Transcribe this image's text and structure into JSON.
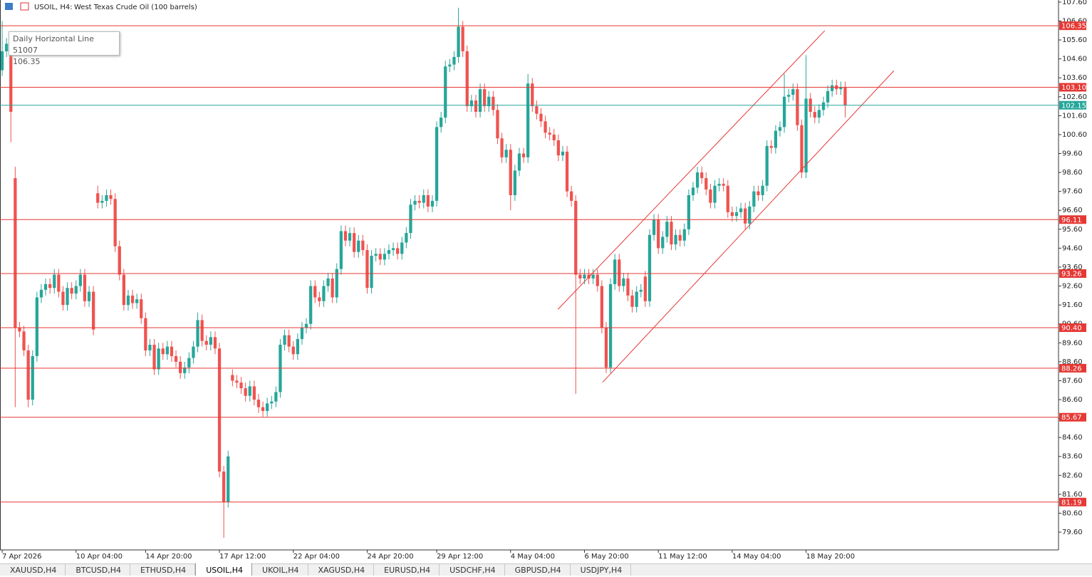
{
  "header": {
    "symbol": "USOIL, H4:",
    "description": "West Texas Crude Oil (100 barrels)"
  },
  "tooltip": {
    "title": "Daily Horizontal Line 51007",
    "value": 106.35
  },
  "tabs": [
    "XAUUSD,H4",
    "BTCUSD,H4",
    "ETHUSD,H4",
    "USOIL,H4",
    "UKOIL,H4",
    "XAGUSD,H4",
    "EURUSD,H4",
    "USDCHF,H4",
    "GBPUSD,H4",
    "USDJPY,H4"
  ],
  "active_tab": 3,
  "chart_data": {
    "type": "candlestick",
    "up_color": "#26a69a",
    "down_color": "#ef5350",
    "xlim": [
      -0.5,
      243.1
    ],
    "ylim": [
      78.66,
      107.71
    ],
    "xticks": [
      {
        "value": 0,
        "label": "7 Apr 2026"
      },
      {
        "value": 17,
        "label": "10 Apr 04:00"
      },
      {
        "value": 33,
        "label": "14 Apr 20:00"
      },
      {
        "value": 50,
        "label": "17 Apr 12:00"
      },
      {
        "value": 67,
        "label": "22 Apr 04:00"
      },
      {
        "value": 84,
        "label": "24 Apr 20:00"
      },
      {
        "value": 100,
        "label": "29 Apr 12:00"
      },
      {
        "value": 117,
        "label": "4 May 04:00"
      },
      {
        "value": 134,
        "label": "6 May 20:00"
      },
      {
        "value": 151,
        "label": "11 May 12:00"
      },
      {
        "value": 168,
        "label": "14 May 04:00"
      },
      {
        "value": 185,
        "label": "18 May 20:00"
      }
    ],
    "yticks": [
      {
        "value": 107.6,
        "label": "107.60"
      },
      {
        "value": 106.6,
        "label": "106.60"
      },
      {
        "value": 105.6,
        "label": "105.60"
      },
      {
        "value": 104.6,
        "label": "104.60"
      },
      {
        "value": 103.6,
        "label": "103.60"
      },
      {
        "value": 102.6,
        "label": "102.60"
      },
      {
        "value": 101.6,
        "label": "101.60"
      },
      {
        "value": 100.6,
        "label": "100.60"
      },
      {
        "value": 99.6,
        "label": "99.60"
      },
      {
        "value": 98.6,
        "label": "98.60"
      },
      {
        "value": 97.6,
        "label": "97.60"
      },
      {
        "value": 96.6,
        "label": "96.60"
      },
      {
        "value": 95.6,
        "label": "95.60"
      },
      {
        "value": 94.6,
        "label": "94.60"
      },
      {
        "value": 93.6,
        "label": "93.60"
      },
      {
        "value": 92.6,
        "label": "92.60"
      },
      {
        "value": 91.6,
        "label": "91.60"
      },
      {
        "value": 90.6,
        "label": "90.60"
      },
      {
        "value": 89.6,
        "label": "89.60"
      },
      {
        "value": 88.6,
        "label": "88.60"
      },
      {
        "value": 87.6,
        "label": "87.60"
      },
      {
        "value": 86.6,
        "label": "86.60"
      },
      {
        "value": 85.6,
        "label": "85.60"
      },
      {
        "value": 84.6,
        "label": "84.60"
      },
      {
        "value": 83.6,
        "label": "83.60"
      },
      {
        "value": 82.6,
        "label": "82.60"
      },
      {
        "value": 81.6,
        "label": "81.60"
      },
      {
        "value": 80.6,
        "label": "80.60"
      },
      {
        "value": 79.6,
        "label": "79.60"
      }
    ],
    "hlines": [
      {
        "value": 106.35,
        "color": "#e53935"
      },
      {
        "value": 103.1,
        "label": "103.10",
        "color": "#e53935"
      },
      {
        "value": 102.15,
        "color": "#26a69a"
      },
      {
        "value": 96.11,
        "color": "#e53935"
      },
      {
        "value": 93.26,
        "color": "#e53935"
      },
      {
        "value": 90.4,
        "label": "90.40",
        "color": "#e53935"
      },
      {
        "value": 88.26,
        "color": "#e53935"
      },
      {
        "value": 85.67,
        "color": "#e53935"
      },
      {
        "value": 81.19,
        "color": "#e53935"
      }
    ],
    "trendlines": [
      {
        "x": [
          127.9,
          189.3
        ],
        "y": [
          91.37,
          106.09
        ],
        "color": "#e53935"
      },
      {
        "x": [
          138.2,
          205.2
        ],
        "y": [
          87.52,
          103.97
        ],
        "color": "#e53935"
      }
    ],
    "open": [
      104.0,
      105.0,
      105.4,
      98.3,
      90.4,
      90.2,
      89.2,
      86.6,
      88.9,
      92.0,
      92.4,
      92.7,
      92.5,
      93.2,
      92.3,
      91.6,
      92.5,
      92.2,
      92.6,
      93.2,
      91.8,
      92.3,
      97.5,
      97.0,
      97.1,
      97.4,
      97.2,
      94.7,
      93.2,
      91.6,
      92.1,
      91.7,
      91.9,
      90.9,
      89.2,
      89.5,
      88.2,
      89.3,
      89.0,
      89.4,
      88.9,
      88.6,
      88.0,
      88.3,
      88.8,
      89.4,
      90.8,
      89.7,
      89.5,
      89.9,
      89.3,
      82.8,
      81.2,
      87.9,
      87.6,
      87.5,
      87.2,
      86.8,
      87.3,
      86.6,
      86.2,
      86.0,
      86.4,
      86.5,
      87.0,
      89.5,
      90.0,
      89.4,
      89.0,
      89.8,
      90.4,
      90.6,
      92.6,
      92.0,
      91.8,
      92.6,
      93.0,
      92.0,
      93.5,
      95.5,
      95.0,
      95.4,
      94.4,
      95.0,
      94.5,
      92.5,
      94.2,
      94.3,
      94.0,
      94.3,
      94.5,
      94.6,
      94.3,
      94.9,
      95.4,
      96.9,
      97.1,
      97.0,
      97.4,
      96.8,
      97.1,
      101.0,
      101.5,
      104.2,
      104.3,
      104.7,
      106.3,
      105.0,
      102.1,
      102.4,
      101.8,
      103.0,
      102.1,
      102.6,
      101.9,
      100.4,
      99.4,
      99.8,
      97.4,
      98.7,
      99.6,
      99.4,
      103.3,
      102.1,
      101.7,
      101.3,
      100.7,
      100.6,
      100.3,
      99.5,
      99.7,
      97.6,
      97.1,
      93.2,
      93.0,
      93.2,
      93.0,
      93.2,
      92.6,
      90.4,
      88.3,
      92.7,
      94.0,
      92.6,
      93.0,
      92.1,
      91.5,
      92.3,
      93.1,
      91.8,
      95.3,
      96.1,
      94.6,
      95.2,
      96.0,
      94.8,
      95.3,
      95.0,
      95.6,
      97.4,
      97.8,
      98.6,
      98.3,
      97.7,
      97.0,
      97.9,
      98.0,
      97.9,
      96.5,
      96.3,
      96.5,
      96.7,
      95.9,
      96.8,
      97.6,
      97.4,
      97.9,
      100.0,
      99.9,
      100.8,
      101.0,
      102.6,
      102.7,
      103.0,
      101.1,
      98.6,
      102.5,
      101.8,
      101.5,
      101.9,
      102.3,
      102.9,
      103.2,
      103.0,
      103.1
    ],
    "high": [
      106.6,
      105.7,
      105.7,
      98.9,
      90.7,
      90.5,
      89.5,
      89.2,
      92.3,
      92.7,
      93.0,
      93.0,
      93.5,
      93.5,
      92.6,
      92.8,
      92.8,
      92.9,
      93.5,
      93.5,
      92.6,
      92.6,
      97.9,
      97.4,
      97.7,
      97.7,
      97.5,
      95.0,
      93.5,
      92.4,
      92.4,
      92.2,
      92.2,
      91.2,
      89.8,
      89.8,
      89.6,
      89.6,
      89.7,
      89.7,
      89.2,
      88.9,
      88.6,
      89.1,
      89.7,
      91.2,
      91.1,
      90.0,
      90.2,
      90.2,
      89.6,
      83.1,
      83.9,
      88.2,
      87.9,
      87.8,
      87.5,
      87.6,
      87.6,
      86.9,
      86.5,
      86.7,
      86.8,
      87.3,
      89.8,
      90.3,
      90.3,
      89.7,
      90.1,
      90.7,
      90.9,
      92.9,
      92.9,
      92.3,
      92.9,
      93.3,
      93.3,
      93.8,
      95.8,
      95.8,
      95.7,
      95.7,
      95.3,
      95.3,
      94.8,
      94.5,
      94.6,
      94.6,
      94.6,
      94.8,
      94.9,
      94.9,
      95.2,
      95.7,
      97.2,
      97.4,
      97.4,
      97.7,
      97.7,
      97.4,
      101.3,
      101.8,
      104.5,
      104.6,
      105.0,
      107.3,
      106.6,
      105.3,
      102.7,
      102.7,
      103.3,
      103.3,
      102.9,
      102.9,
      102.2,
      100.7,
      100.1,
      100.1,
      99.0,
      99.9,
      99.9,
      103.8,
      103.6,
      102.4,
      102.0,
      101.6,
      101.0,
      100.9,
      100.6,
      100.0,
      100.0,
      97.9,
      97.4,
      93.5,
      93.5,
      93.5,
      93.5,
      93.5,
      92.9,
      90.7,
      93.0,
      94.3,
      94.3,
      93.3,
      93.3,
      92.4,
      92.6,
      92.7,
      93.4,
      95.6,
      96.4,
      96.4,
      95.5,
      96.3,
      96.3,
      95.6,
      95.6,
      95.9,
      97.7,
      98.1,
      98.9,
      98.9,
      98.6,
      98.0,
      98.2,
      98.3,
      98.3,
      98.2,
      96.8,
      96.8,
      97.0,
      97.0,
      97.1,
      97.9,
      97.9,
      98.2,
      100.3,
      100.3,
      101.1,
      101.3,
      103.8,
      103.0,
      103.3,
      103.3,
      101.4,
      104.8,
      102.8,
      102.1,
      102.2,
      102.6,
      103.2,
      103.5,
      103.5,
      103.4,
      103.4
    ],
    "low": [
      103.7,
      104.7,
      100.2,
      86.2,
      89.9,
      88.9,
      86.2,
      86.3,
      88.6,
      91.7,
      92.1,
      92.2,
      92.2,
      92.0,
      91.3,
      91.3,
      91.9,
      91.9,
      92.3,
      91.5,
      91.5,
      90.0,
      96.7,
      96.7,
      96.8,
      96.9,
      94.4,
      92.9,
      91.3,
      91.3,
      91.4,
      91.4,
      90.6,
      88.9,
      88.9,
      87.9,
      87.9,
      88.7,
      88.7,
      88.6,
      88.3,
      87.7,
      87.7,
      88.0,
      88.5,
      89.1,
      89.4,
      89.2,
      89.2,
      89.0,
      82.5,
      79.3,
      80.9,
      87.3,
      87.2,
      86.9,
      86.5,
      86.5,
      86.3,
      85.9,
      85.7,
      85.7,
      86.1,
      86.2,
      86.7,
      89.2,
      89.1,
      88.7,
      88.7,
      89.5,
      90.1,
      90.3,
      91.7,
      91.5,
      91.5,
      92.3,
      91.7,
      91.7,
      93.2,
      94.7,
      94.7,
      94.1,
      94.1,
      94.2,
      92.2,
      92.2,
      93.9,
      93.7,
      93.7,
      94.0,
      94.2,
      94.0,
      94.0,
      94.6,
      95.1,
      96.6,
      96.7,
      96.7,
      96.5,
      96.5,
      96.8,
      100.7,
      101.2,
      103.9,
      104.0,
      104.4,
      104.7,
      101.8,
      101.8,
      101.5,
      101.5,
      101.8,
      101.8,
      101.6,
      100.1,
      99.1,
      99.1,
      96.6,
      97.1,
      98.4,
      99.1,
      99.1,
      101.8,
      101.4,
      101.0,
      100.4,
      100.3,
      100.0,
      99.2,
      99.2,
      97.3,
      96.8,
      86.9,
      92.7,
      92.7,
      92.7,
      92.7,
      92.3,
      90.1,
      88.0,
      88.0,
      92.4,
      92.3,
      92.3,
      91.8,
      91.2,
      91.2,
      92.0,
      91.5,
      91.5,
      95.0,
      94.3,
      94.3,
      94.9,
      94.5,
      94.5,
      94.7,
      94.7,
      95.3,
      97.1,
      97.5,
      98.0,
      97.4,
      96.7,
      96.7,
      97.6,
      97.6,
      96.2,
      96.0,
      96.0,
      96.2,
      95.6,
      95.6,
      96.5,
      97.1,
      97.1,
      97.6,
      99.6,
      99.6,
      100.5,
      100.7,
      102.3,
      102.4,
      100.8,
      98.3,
      98.3,
      101.5,
      101.2,
      101.2,
      101.6,
      102.0,
      102.6,
      102.7,
      102.7,
      101.5
    ],
    "close": [
      105.0,
      105.4,
      101.8,
      90.4,
      90.2,
      89.2,
      86.6,
      88.9,
      92.0,
      92.4,
      92.7,
      92.5,
      93.2,
      92.3,
      91.6,
      92.5,
      92.2,
      92.6,
      93.2,
      91.8,
      92.3,
      90.3,
      97.0,
      97.1,
      97.4,
      97.2,
      94.7,
      93.2,
      91.6,
      92.1,
      91.7,
      91.9,
      90.9,
      89.2,
      89.5,
      88.2,
      89.3,
      89.0,
      89.4,
      88.9,
      88.6,
      88.0,
      88.3,
      88.8,
      89.4,
      90.8,
      89.7,
      89.5,
      89.9,
      89.3,
      82.8,
      81.2,
      83.6,
      87.6,
      87.5,
      87.2,
      86.8,
      87.3,
      86.6,
      86.2,
      86.0,
      86.4,
      86.5,
      87.0,
      89.5,
      90.0,
      89.4,
      89.0,
      89.8,
      90.4,
      90.6,
      92.6,
      92.0,
      91.8,
      92.6,
      93.0,
      92.0,
      93.5,
      95.5,
      95.0,
      95.4,
      94.4,
      95.0,
      94.5,
      92.5,
      94.2,
      94.3,
      94.0,
      94.3,
      94.5,
      94.6,
      94.3,
      94.9,
      95.4,
      96.9,
      97.1,
      97.0,
      97.4,
      96.8,
      97.1,
      101.0,
      101.5,
      104.2,
      104.3,
      104.7,
      106.3,
      105.0,
      102.1,
      102.4,
      101.8,
      103.0,
      102.1,
      102.6,
      101.9,
      100.4,
      99.4,
      99.8,
      97.4,
      98.7,
      99.6,
      99.4,
      103.3,
      102.1,
      101.7,
      101.3,
      100.7,
      100.6,
      100.3,
      99.5,
      99.7,
      97.6,
      97.1,
      93.2,
      93.0,
      93.2,
      93.0,
      93.2,
      92.6,
      90.4,
      88.3,
      92.7,
      94.0,
      92.6,
      93.0,
      92.1,
      91.5,
      92.3,
      92.4,
      91.8,
      95.3,
      96.1,
      94.6,
      95.2,
      96.0,
      94.8,
      95.3,
      95.0,
      95.6,
      97.4,
      97.8,
      98.6,
      98.3,
      97.7,
      97.0,
      97.9,
      98.0,
      97.9,
      96.5,
      96.3,
      96.5,
      96.7,
      95.9,
      96.8,
      97.6,
      97.4,
      97.9,
      100.0,
      99.9,
      100.8,
      101.0,
      102.6,
      102.7,
      103.0,
      101.1,
      98.6,
      102.5,
      101.8,
      101.5,
      101.9,
      102.3,
      102.9,
      103.2,
      103.0,
      103.1,
      102.15
    ]
  }
}
